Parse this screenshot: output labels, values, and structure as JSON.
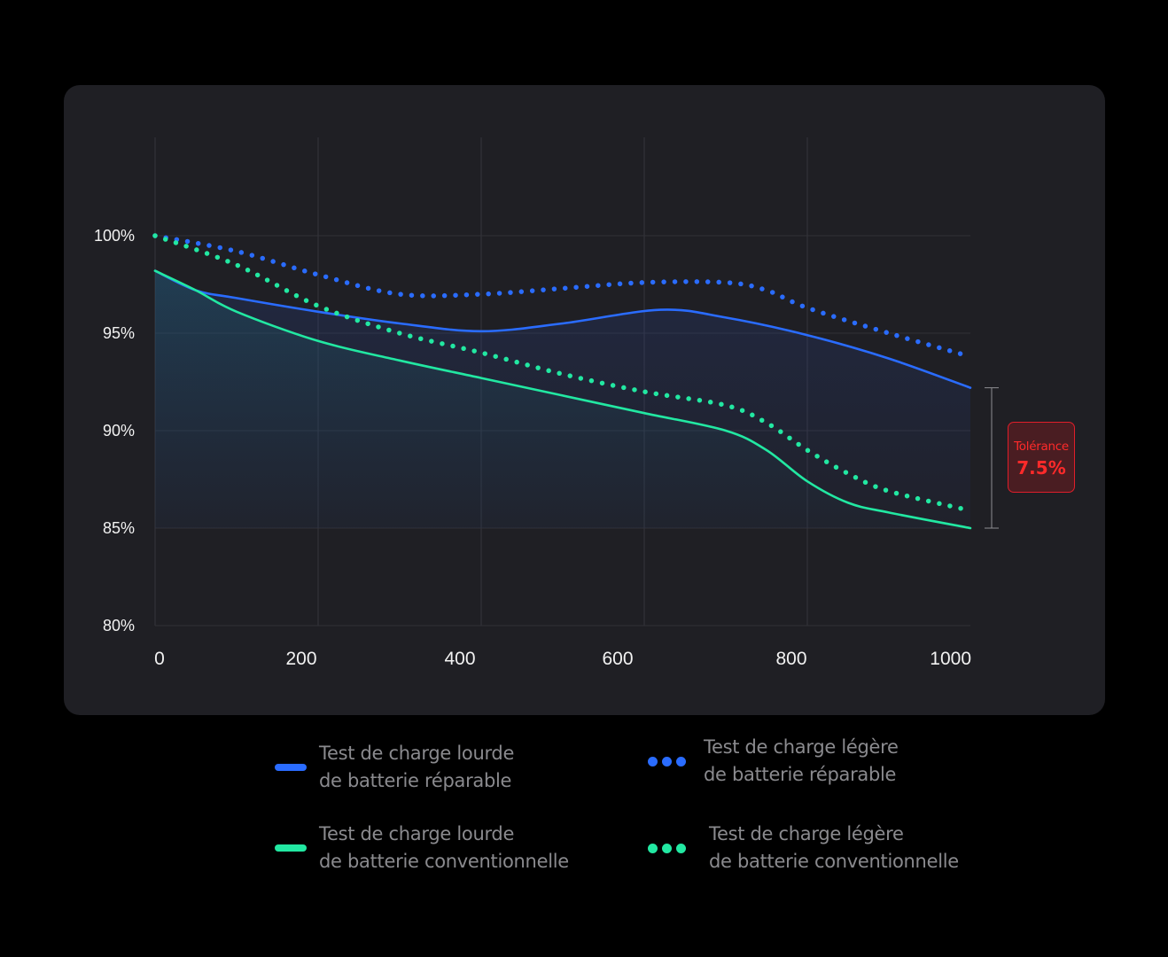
{
  "colors": {
    "background": "#000000",
    "card": "#1f1f24",
    "repairable": "#2a6cff",
    "conventional": "#22e8a2",
    "tolerance": "#ff2a2a",
    "grid": "#34343b",
    "axis_text": "#f2f2f2",
    "legend_text": "#8a8a8e"
  },
  "tolerance": {
    "label": "Tolérance",
    "value": "7.5%",
    "range": [
      85.0,
      92.2
    ]
  },
  "legend": [
    {
      "line1": "Test de charge lourde",
      "line2": "de batterie réparable",
      "style": "solid",
      "color": "#2a6cff"
    },
    {
      "line1": "Test de charge légère",
      "line2": "de batterie réparable",
      "style": "dotted",
      "color": "#2a6cff"
    },
    {
      "line1": "Test de charge lourde",
      "line2": "de batterie conventionnelle",
      "style": "solid",
      "color": "#22e8a2"
    },
    {
      "line1": "Test de charge légère",
      "line2": "de batterie conventionnelle",
      "style": "dotted",
      "color": "#22e8a2"
    }
  ],
  "chart_data": {
    "type": "line",
    "title": "",
    "xlabel": "",
    "ylabel": "",
    "xlim": [
      0,
      1000
    ],
    "ylim": [
      80,
      105
    ],
    "x_ticks": [
      0,
      200,
      400,
      600,
      800,
      1000
    ],
    "x_tick_labels": [
      "0",
      "200",
      "400",
      "600",
      "800",
      "1000"
    ],
    "y_ticks": [
      80,
      85,
      90,
      95,
      100
    ],
    "y_tick_labels": [
      "80%",
      "85%",
      "90%",
      "95%",
      "100%"
    ],
    "grid": true,
    "legend_position": "bottom",
    "series": [
      {
        "name": "Test de charge lourde de batterie réparable",
        "style": "solid",
        "fill": true,
        "color": "#2a6cff",
        "x": [
          0,
          50,
          100,
          200,
          300,
          400,
          500,
          620,
          700,
          800,
          900,
          1000
        ],
        "y": [
          98.2,
          97.2,
          96.8,
          96.1,
          95.5,
          95.1,
          95.5,
          96.2,
          95.8,
          94.9,
          93.7,
          92.2
        ]
      },
      {
        "name": "Test de charge légère de batterie réparable",
        "style": "dotted",
        "fill": false,
        "color": "#2a6cff",
        "x": [
          0,
          100,
          200,
          300,
          400,
          500,
          600,
          700,
          750,
          800,
          900,
          1000
        ],
        "y": [
          100.0,
          99.2,
          98.0,
          97.0,
          97.0,
          97.3,
          97.6,
          97.6,
          97.2,
          96.3,
          95.0,
          93.8
        ],
        "dashed_start": true
      },
      {
        "name": "Test de charge lourde de batterie conventionnelle",
        "style": "solid",
        "fill": true,
        "color": "#22e8a2",
        "x": [
          0,
          50,
          100,
          200,
          300,
          400,
          500,
          600,
          700,
          750,
          800,
          850,
          900,
          1000
        ],
        "y": [
          98.2,
          97.2,
          96.1,
          94.6,
          93.6,
          92.7,
          91.8,
          90.9,
          90.0,
          89.0,
          87.4,
          86.3,
          85.8,
          85.0
        ]
      },
      {
        "name": "Test de charge légère de batterie conventionnelle",
        "style": "dotted",
        "fill": false,
        "color": "#22e8a2",
        "x": [
          0,
          100,
          200,
          300,
          400,
          500,
          600,
          700,
          750,
          800,
          850,
          900,
          1000
        ],
        "y": [
          100.0,
          98.5,
          96.4,
          95.0,
          94.0,
          92.9,
          92.0,
          91.3,
          90.4,
          89.0,
          87.8,
          86.9,
          85.9
        ]
      }
    ]
  }
}
